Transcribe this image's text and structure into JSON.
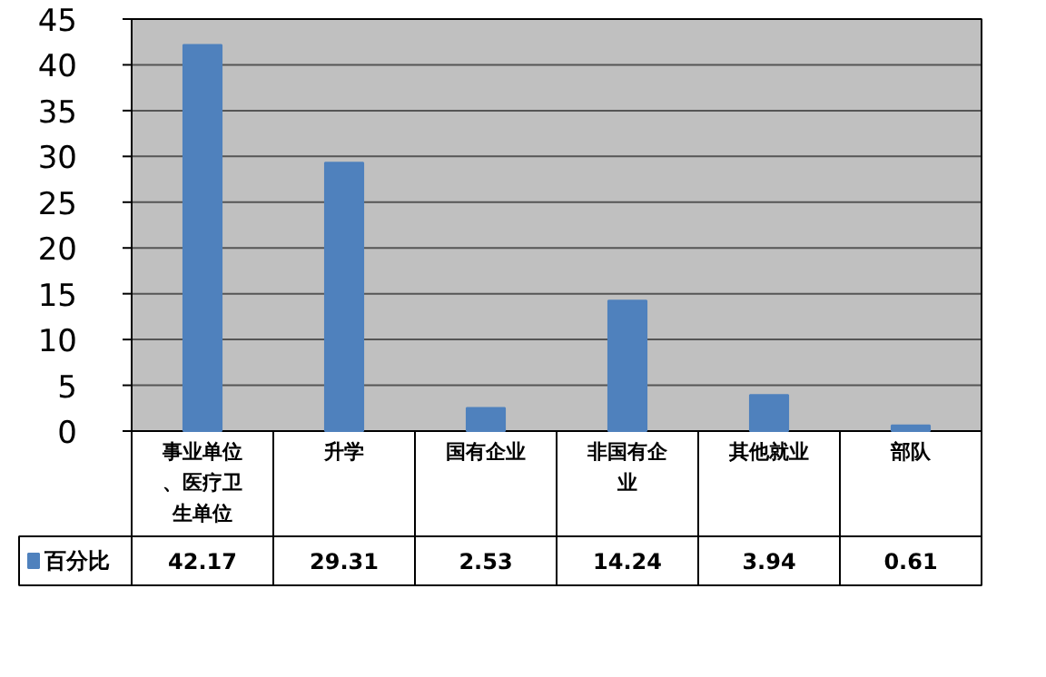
{
  "chart_data": {
    "type": "bar",
    "categories": [
      "事业单位、医疗卫生单位",
      "升学",
      "国有企业",
      "非国有企业",
      "其他就业",
      "部队"
    ],
    "series": [
      {
        "name": "百分比",
        "color": "#4f81bd",
        "values": [
          42.17,
          29.31,
          2.53,
          14.24,
          3.94,
          0.61
        ]
      }
    ],
    "ylim": [
      0,
      45
    ],
    "yticks": [
      0,
      5,
      10,
      15,
      20,
      25,
      30,
      35,
      40,
      45
    ],
    "grid": "y",
    "data_labels": true,
    "legend": "bottom"
  }
}
